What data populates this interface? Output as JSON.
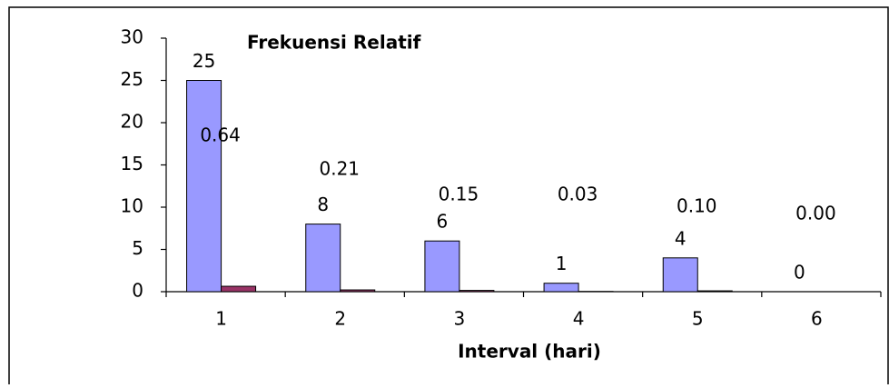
{
  "chart_data": {
    "type": "bar",
    "title": "Frekuensi Relatif",
    "x_label": "Interval (hari)",
    "categories": [
      "1",
      "2",
      "3",
      "4",
      "5",
      "6"
    ],
    "series": [
      {
        "color": "#9999ff",
        "values": [
          25,
          8,
          6,
          1,
          4,
          0
        ]
      },
      {
        "color": "#993366",
        "values": [
          0.64,
          0.21,
          0.15,
          0.03,
          0.1,
          0
        ],
        "value_labels": [
          "0.64",
          "0.21",
          "0.15",
          "0.03",
          "0.10",
          "0.00"
        ]
      }
    ],
    "ylim": [
      0,
      30
    ],
    "yticks": [
      0,
      5,
      10,
      15,
      20,
      25,
      30
    ],
    "grid": false
  }
}
